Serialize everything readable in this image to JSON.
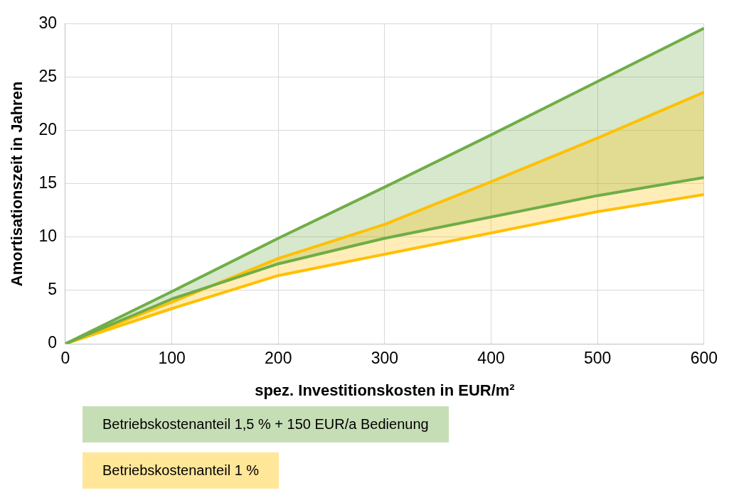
{
  "chart_data": {
    "type": "line",
    "xlabel": "spez. Investitionskosten in EUR/m²",
    "ylabel": "Amortisationszeit in Jahren",
    "x": [
      0,
      100,
      200,
      300,
      400,
      500,
      600
    ],
    "series": [
      {
        "name": "Betriebskostenanteil 1,5 % + 150 EUR/a Bedienung",
        "color": "#70ad47",
        "values": [
          0,
          4.9,
          9.9,
          14.7,
          19.6,
          24.6,
          29.6
        ],
        "upper": [
          0,
          4.9,
          9.9,
          14.7,
          19.6,
          24.6,
          29.6
        ],
        "lower": [
          0,
          4.2,
          7.5,
          9.9,
          11.9,
          13.9,
          15.6
        ]
      },
      {
        "color": "#70ad47",
        "values": [
          0,
          4.2,
          7.5,
          9.9,
          11.9,
          13.9,
          15.6
        ]
      },
      {
        "name": "Betriebskostenanteil 1 %",
        "color": "#ffc000",
        "values": [
          0,
          3.9,
          8.0,
          11.2,
          15.2,
          19.3,
          23.6
        ],
        "upper": [
          0,
          3.9,
          8.0,
          11.2,
          15.2,
          19.3,
          23.6
        ],
        "lower": [
          0,
          3.3,
          6.4,
          8.4,
          10.4,
          12.4,
          14.0
        ]
      },
      {
        "color": "#ffc000",
        "values": [
          0,
          3.3,
          6.4,
          8.4,
          10.4,
          12.4,
          14.0
        ]
      }
    ],
    "xlim": [
      0,
      600
    ],
    "xticks": [
      0,
      100,
      200,
      300,
      400,
      500,
      600
    ],
    "ylim": [
      0,
      30
    ],
    "yticks": [
      0,
      5,
      10,
      15,
      20,
      25,
      30
    ],
    "grid": true,
    "legend": "bottom",
    "marker": "none",
    "line_style": "solid"
  }
}
